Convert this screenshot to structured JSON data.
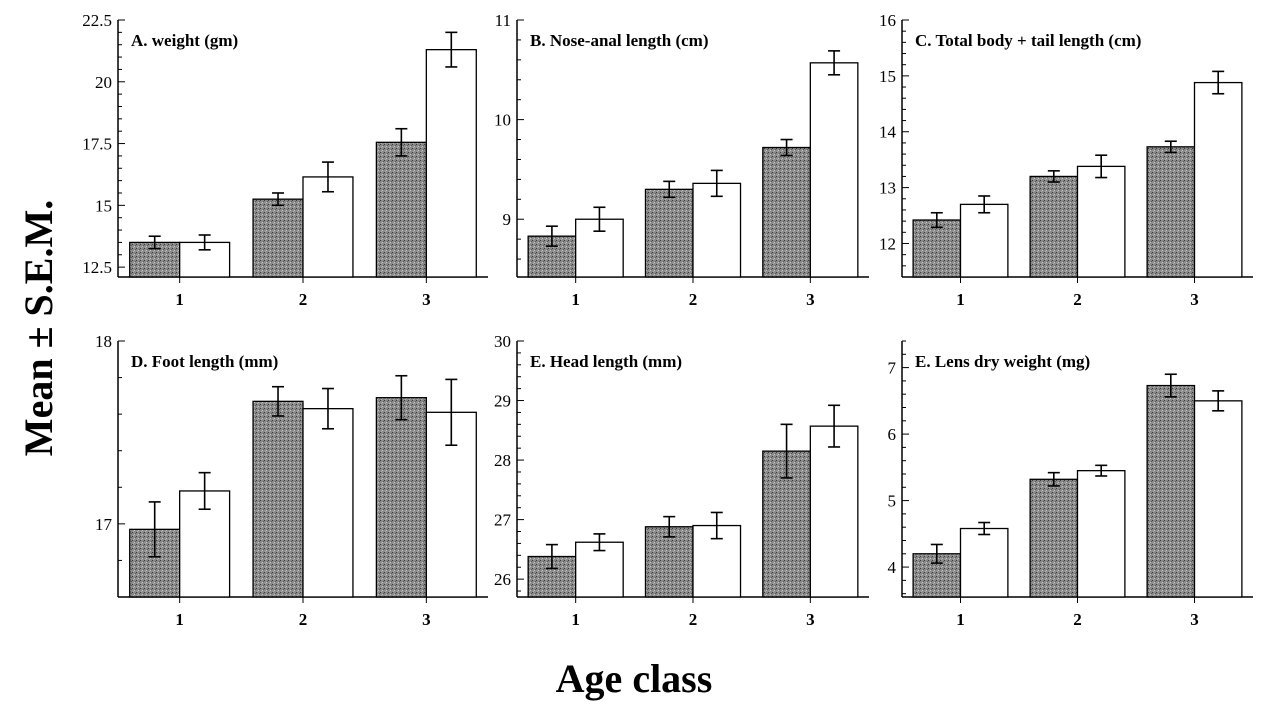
{
  "figure": {
    "ylabel": "Mean ± S.E.M.",
    "xlabel": "Age class"
  },
  "chart_data": [
    {
      "type": "bar",
      "title": "A. weight (gm)",
      "categories": [
        "1",
        "2",
        "3"
      ],
      "ylim": [
        12.1,
        22.5
      ],
      "yticks": [
        "12.5",
        "15",
        "17.5",
        "20",
        "22.5"
      ],
      "series": [
        {
          "values": [
            13.5,
            15.25,
            17.55
          ],
          "errors": [
            0.25,
            0.25,
            0.55
          ],
          "fill": "#8c8c8c"
        },
        {
          "values": [
            13.5,
            16.15,
            21.3
          ],
          "errors": [
            0.3,
            0.6,
            0.7
          ],
          "fill": "#ffffff"
        }
      ]
    },
    {
      "type": "bar",
      "title": "B. Nose-anal length (cm)",
      "categories": [
        "1",
        "2",
        "3"
      ],
      "ylim": [
        8.42,
        11
      ],
      "yticks": [
        "9",
        "10",
        "11"
      ],
      "series": [
        {
          "values": [
            8.83,
            9.3,
            9.72
          ],
          "errors": [
            0.1,
            0.08,
            0.08
          ],
          "fill": "#8c8c8c"
        },
        {
          "values": [
            9.0,
            9.36,
            10.57
          ],
          "errors": [
            0.12,
            0.13,
            0.12
          ],
          "fill": "#ffffff"
        }
      ]
    },
    {
      "type": "bar",
      "title": "C. Total body + tail length (cm)",
      "categories": [
        "1",
        "2",
        "3"
      ],
      "ylim": [
        11.4,
        16
      ],
      "yticks": [
        "12",
        "13",
        "14",
        "15",
        "16"
      ],
      "series": [
        {
          "values": [
            12.42,
            13.2,
            13.73
          ],
          "errors": [
            0.13,
            0.1,
            0.1
          ],
          "fill": "#8c8c8c"
        },
        {
          "values": [
            12.7,
            13.38,
            14.88
          ],
          "errors": [
            0.15,
            0.2,
            0.2
          ],
          "fill": "#ffffff"
        }
      ]
    },
    {
      "type": "bar",
      "title": "D. Foot length (mm)",
      "categories": [
        "1",
        "2",
        "3"
      ],
      "ylim": [
        16.6,
        18
      ],
      "yticks": [
        "17",
        "18"
      ],
      "series": [
        {
          "values": [
            16.97,
            17.67,
            17.69
          ],
          "errors": [
            0.15,
            0.08,
            0.12
          ],
          "fill": "#8c8c8c"
        },
        {
          "values": [
            17.18,
            17.63,
            17.61
          ],
          "errors": [
            0.1,
            0.11,
            0.18
          ],
          "fill": "#ffffff"
        }
      ]
    },
    {
      "type": "bar",
      "title": "E. Head length (mm)",
      "categories": [
        "1",
        "2",
        "3"
      ],
      "ylim": [
        25.7,
        30
      ],
      "yticks": [
        "26",
        "27",
        "28",
        "29",
        "30"
      ],
      "series": [
        {
          "values": [
            26.38,
            26.88,
            28.15
          ],
          "errors": [
            0.2,
            0.17,
            0.45
          ],
          "fill": "#8c8c8c"
        },
        {
          "values": [
            26.62,
            26.9,
            28.57
          ],
          "errors": [
            0.14,
            0.22,
            0.35
          ],
          "fill": "#ffffff"
        }
      ]
    },
    {
      "type": "bar",
      "title": "E. Lens dry weight (mg)",
      "categories": [
        "1",
        "2",
        "3"
      ],
      "ylim": [
        3.55,
        7.4
      ],
      "yticks": [
        "4",
        "5",
        "6",
        "7"
      ],
      "series": [
        {
          "values": [
            4.2,
            5.32,
            6.73
          ],
          "errors": [
            0.14,
            0.1,
            0.17
          ],
          "fill": "#8c8c8c"
        },
        {
          "values": [
            4.58,
            5.45,
            6.5
          ],
          "errors": [
            0.09,
            0.08,
            0.15
          ],
          "fill": "#ffffff"
        }
      ]
    }
  ]
}
